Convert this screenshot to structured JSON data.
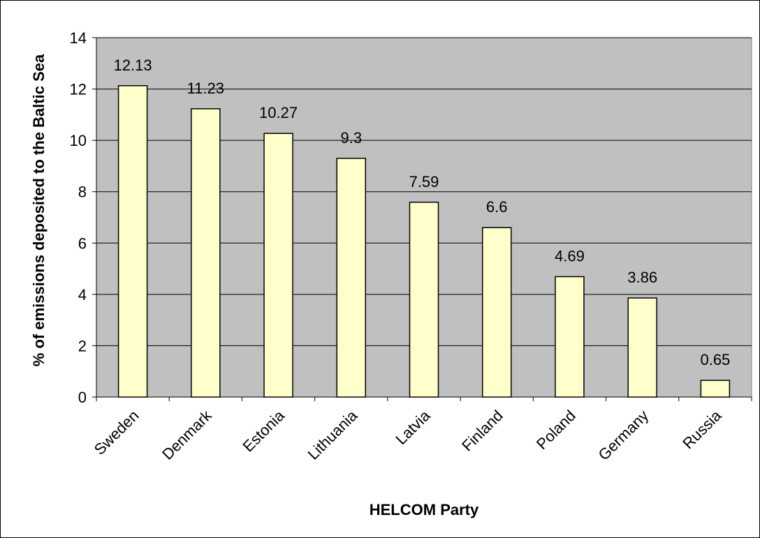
{
  "chart_data": {
    "type": "bar",
    "title": "",
    "xlabel": "HELCOM Party",
    "ylabel": "% of emissions deposited to the Baltic Sea",
    "categories": [
      "Sweden",
      "Denmark",
      "Estonia",
      "Lithuania",
      "Latvia",
      "Finland",
      "Poland",
      "Germany",
      "Russia"
    ],
    "values": [
      12.13,
      11.23,
      10.27,
      9.3,
      7.59,
      6.6,
      4.69,
      3.86,
      0.65
    ],
    "value_labels": [
      "12.13",
      "11.23",
      "10.27",
      "9.3",
      "7.59",
      "6.6",
      "4.69",
      "3.86",
      "0.65"
    ],
    "ylim": [
      0,
      14
    ],
    "yticks": [
      0,
      2,
      4,
      6,
      8,
      10,
      12,
      14
    ],
    "ytick_labels": [
      "0",
      "2",
      "4",
      "6",
      "8",
      "10",
      "12",
      "14"
    ],
    "grid": true,
    "legend": "none",
    "colors": {
      "bar_fill": "#FFFFCC",
      "bar_stroke": "#000000",
      "plot_background": "#C0C0C0",
      "gridline": "#000000"
    }
  }
}
